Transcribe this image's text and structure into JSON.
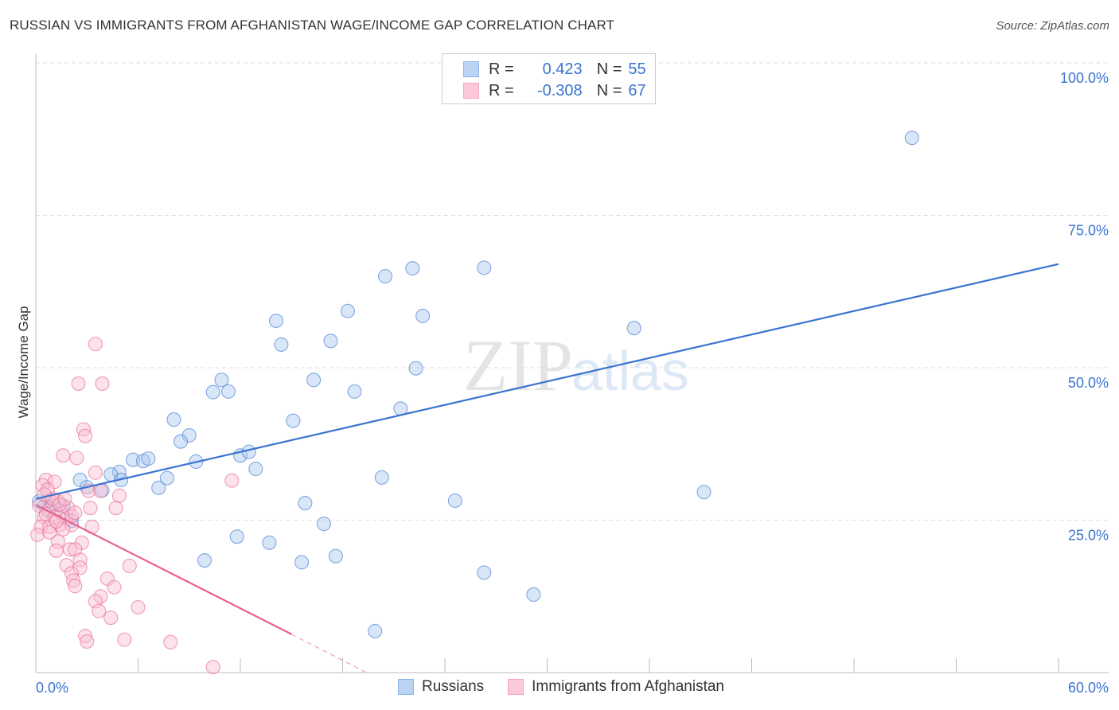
{
  "title": "RUSSIAN VS IMMIGRANTS FROM AFGHANISTAN WAGE/INCOME GAP CORRELATION CHART",
  "source": "Source: ZipAtlas.com",
  "watermark": "ZIPatlas",
  "legend": [
    {
      "r_label": "R =",
      "r_value": "0.423",
      "n_label": "N =",
      "n_value": "55",
      "color": "#8ab4ea"
    },
    {
      "r_label": "R =",
      "r_value": "-0.308",
      "n_label": "N =",
      "n_value": "67",
      "color": "#f4a6bf"
    }
  ],
  "chart_data": {
    "type": "scatter",
    "title": "RUSSIAN VS IMMIGRANTS FROM AFGHANISTAN WAGE/INCOME GAP CORRELATION CHART",
    "xlabel": "",
    "ylabel": "Wage/Income Gap",
    "xlim": [
      0,
      60
    ],
    "ylim": [
      0,
      100
    ],
    "x_tick_labels": [
      "0.0%",
      "60.0%"
    ],
    "y_tick_labels": [
      "25.0%",
      "50.0%",
      "75.0%",
      "100.0%"
    ],
    "y_ticks": [
      25,
      50,
      75,
      100
    ],
    "grid": true,
    "legend_position": "top-center",
    "series": [
      {
        "name": "Russians",
        "color": "#3a74d0",
        "fill": "#a9c8f0",
        "trend": {
          "x": [
            0,
            60
          ],
          "y": [
            28.5,
            67.0
          ]
        },
        "points": [
          [
            51.4,
            87.7
          ],
          [
            22.1,
            66.3
          ],
          [
            26.3,
            66.4
          ],
          [
            20.5,
            65.0
          ],
          [
            18.3,
            59.3
          ],
          [
            22.7,
            58.5
          ],
          [
            14.1,
            57.7
          ],
          [
            35.1,
            56.5
          ],
          [
            17.3,
            54.4
          ],
          [
            14.4,
            53.8
          ],
          [
            22.3,
            49.9
          ],
          [
            10.9,
            48.0
          ],
          [
            16.3,
            48.0
          ],
          [
            10.4,
            46.0
          ],
          [
            11.3,
            46.1
          ],
          [
            18.7,
            46.1
          ],
          [
            21.4,
            43.3
          ],
          [
            8.1,
            41.5
          ],
          [
            15.1,
            41.3
          ],
          [
            9.0,
            38.9
          ],
          [
            8.5,
            37.9
          ],
          [
            9.4,
            34.6
          ],
          [
            12.0,
            35.6
          ],
          [
            12.5,
            36.2
          ],
          [
            12.9,
            33.4
          ],
          [
            5.7,
            34.9
          ],
          [
            6.3,
            34.7
          ],
          [
            6.6,
            35.1
          ],
          [
            4.9,
            32.9
          ],
          [
            4.4,
            32.5
          ],
          [
            5.0,
            31.6
          ],
          [
            7.7,
            31.9
          ],
          [
            20.3,
            32.0
          ],
          [
            2.6,
            31.6
          ],
          [
            3.0,
            30.4
          ],
          [
            3.9,
            29.9
          ],
          [
            7.2,
            30.3
          ],
          [
            39.2,
            29.6
          ],
          [
            24.6,
            28.2
          ],
          [
            15.8,
            27.8
          ],
          [
            0.5,
            27.4
          ],
          [
            1.6,
            27.4
          ],
          [
            1.0,
            27.3
          ],
          [
            0.7,
            26.5
          ],
          [
            2.1,
            24.9
          ],
          [
            16.9,
            24.4
          ],
          [
            11.8,
            22.3
          ],
          [
            13.7,
            21.3
          ],
          [
            17.6,
            19.1
          ],
          [
            9.9,
            18.4
          ],
          [
            15.6,
            18.1
          ],
          [
            26.3,
            16.4
          ],
          [
            29.2,
            12.8
          ],
          [
            19.9,
            6.8
          ],
          [
            0.2,
            28.1
          ]
        ]
      },
      {
        "name": "Immigrants from Afghanistan",
        "color": "#e8608f",
        "fill": "#f8bfd0",
        "trend": {
          "x": [
            0,
            15.0
          ],
          "y": [
            27.5,
            6.3
          ]
        },
        "trend_dashed": {
          "x": [
            15.0,
            19.4
          ],
          "y": [
            6.3,
            0
          ]
        },
        "points": [
          [
            3.5,
            53.9
          ],
          [
            2.5,
            47.4
          ],
          [
            3.9,
            47.4
          ],
          [
            2.8,
            39.9
          ],
          [
            2.9,
            38.8
          ],
          [
            1.6,
            35.6
          ],
          [
            2.4,
            35.2
          ],
          [
            3.5,
            32.8
          ],
          [
            11.5,
            31.5
          ],
          [
            0.6,
            31.6
          ],
          [
            1.1,
            31.3
          ],
          [
            0.4,
            30.7
          ],
          [
            0.7,
            30.0
          ],
          [
            3.1,
            29.8
          ],
          [
            3.8,
            29.8
          ],
          [
            4.9,
            29.0
          ],
          [
            0.8,
            28.3
          ],
          [
            1.3,
            28.1
          ],
          [
            0.2,
            27.4
          ],
          [
            0.8,
            26.8
          ],
          [
            3.2,
            27.0
          ],
          [
            4.7,
            27.0
          ],
          [
            1.5,
            26.1
          ],
          [
            0.5,
            25.5
          ],
          [
            1.8,
            25.2
          ],
          [
            1.4,
            24.2
          ],
          [
            2.1,
            24.2
          ],
          [
            0.3,
            23.9
          ],
          [
            0.8,
            23.9
          ],
          [
            1.6,
            23.5
          ],
          [
            3.3,
            23.9
          ],
          [
            0.1,
            22.6
          ],
          [
            1.3,
            21.5
          ],
          [
            2.7,
            21.3
          ],
          [
            1.2,
            20.0
          ],
          [
            2.0,
            20.2
          ],
          [
            2.3,
            20.2
          ],
          [
            2.6,
            18.5
          ],
          [
            1.8,
            17.6
          ],
          [
            5.5,
            17.5
          ],
          [
            2.6,
            17.2
          ],
          [
            2.1,
            16.3
          ],
          [
            4.2,
            15.4
          ],
          [
            2.2,
            15.1
          ],
          [
            2.3,
            14.2
          ],
          [
            4.6,
            14.0
          ],
          [
            3.8,
            12.5
          ],
          [
            3.5,
            11.7
          ],
          [
            6.0,
            10.7
          ],
          [
            3.7,
            10.1
          ],
          [
            4.4,
            9.0
          ],
          [
            2.9,
            6.0
          ],
          [
            3.0,
            5.1
          ],
          [
            5.2,
            5.4
          ],
          [
            7.9,
            5.0
          ],
          [
            10.4,
            0.9
          ],
          [
            1.0,
            28.5
          ],
          [
            0.6,
            26.0
          ],
          [
            1.9,
            27.0
          ],
          [
            1.1,
            25.5
          ],
          [
            1.4,
            27.6
          ],
          [
            0.5,
            29.2
          ],
          [
            2.1,
            25.7
          ],
          [
            0.8,
            23.0
          ],
          [
            1.2,
            24.8
          ],
          [
            1.7,
            28.5
          ],
          [
            2.3,
            26.2
          ]
        ]
      }
    ]
  }
}
